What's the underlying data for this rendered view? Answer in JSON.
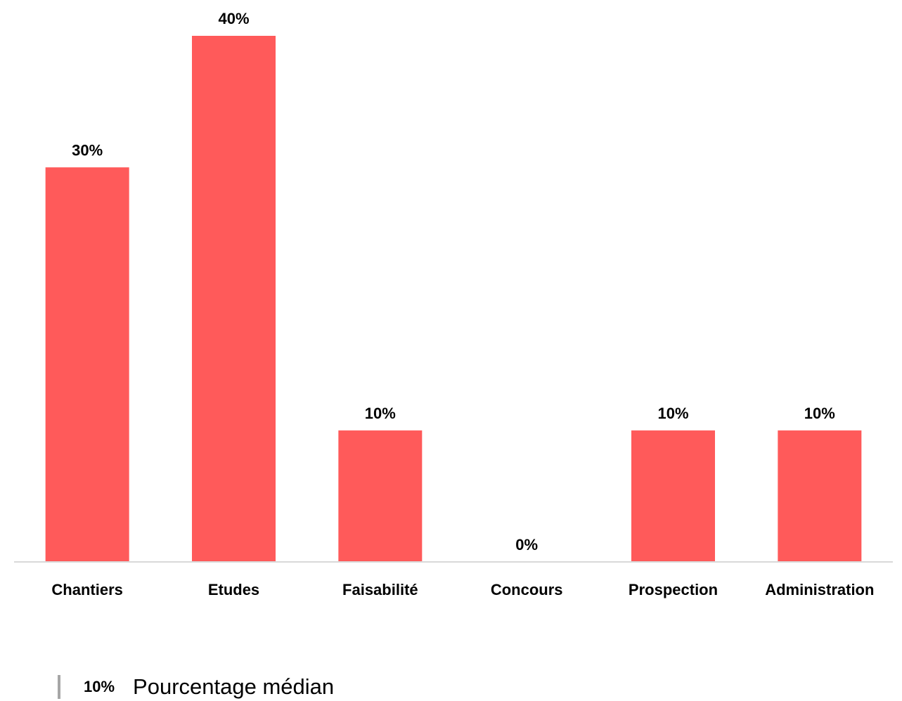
{
  "chart_data": {
    "type": "bar",
    "categories": [
      "Chantiers",
      "Etudes",
      "Faisabilité",
      "Concours",
      "Prospection",
      "Administration"
    ],
    "values": [
      30,
      40,
      10,
      0,
      10,
      10
    ],
    "value_labels": [
      "30%",
      "40%",
      "10%",
      "0%",
      "10%",
      "10%"
    ],
    "unit": "%",
    "ylim": [
      0,
      40
    ],
    "grid": false,
    "bar_color": "#ff5a5a",
    "axis_color": "#d9d9d9"
  },
  "legend": {
    "value": "10%",
    "label": "Pourcentage médian",
    "marker_color": "#a6a6a6"
  }
}
